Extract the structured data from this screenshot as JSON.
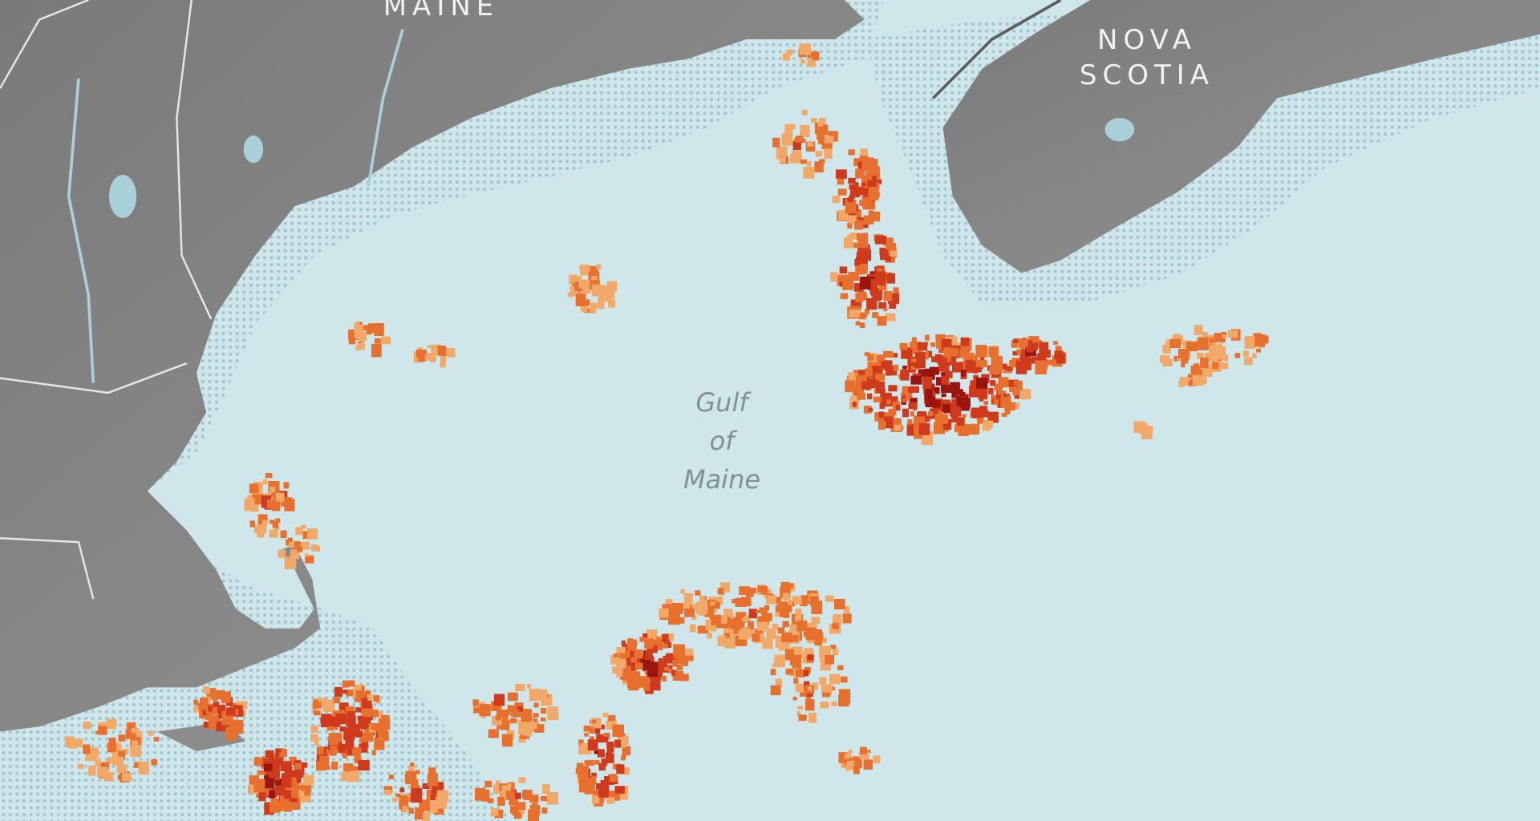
{
  "labels": {
    "maine": "MAINE",
    "nova_scotia_line1": "NOVA",
    "nova_scotia_line2": "SCOTIA",
    "gulf_line1": "Gulf",
    "gulf_line2": "of",
    "gulf_line3": "Maine"
  },
  "colors": {
    "water": "#cfe6ea",
    "shallow_water_dots": "#9fc6cd",
    "land": "#8c8c8c",
    "land_dark": "#6f6f6f",
    "borders": "#e6e6e6",
    "lakes_rivers": "#a9cfd8",
    "hotspot_scale": [
      "#f2a868",
      "#e8702e",
      "#cf3a1c",
      "#9a1410",
      "#4c0606"
    ]
  }
}
